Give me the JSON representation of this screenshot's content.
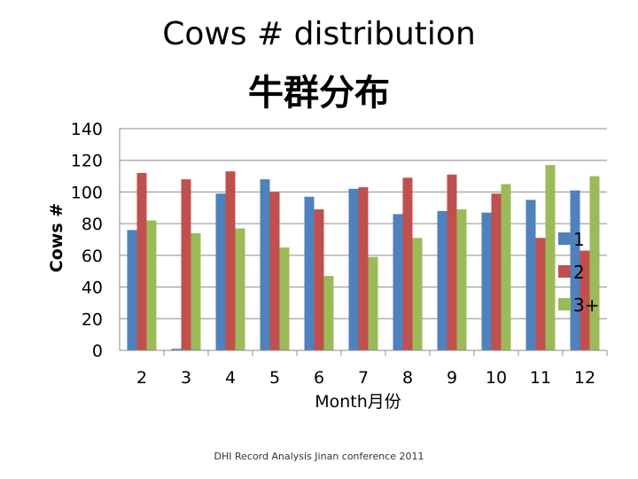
{
  "chart_data": {
    "type": "bar",
    "title": "Cows # distribution",
    "subtitle": "牛群分布",
    "xlabel": "Month月份",
    "ylabel": "Cows #",
    "categories": [
      "2",
      "3",
      "4",
      "5",
      "6",
      "7",
      "8",
      "9",
      "10",
      "11",
      "12"
    ],
    "ylim": [
      0,
      140
    ],
    "yticks": [
      0,
      20,
      40,
      60,
      80,
      100,
      120,
      140
    ],
    "grid": true,
    "legend_position": "right",
    "series": [
      {
        "name": "1",
        "color": "#4F81BD",
        "values": [
          76,
          1,
          99,
          108,
          97,
          102,
          86,
          88,
          87,
          95,
          101
        ]
      },
      {
        "name": "2",
        "color": "#C0504D",
        "values": [
          112,
          108,
          113,
          100,
          89,
          103,
          109,
          111,
          99,
          71,
          63
        ]
      },
      {
        "name": "3+",
        "color": "#9BBB59",
        "values": [
          82,
          74,
          77,
          65,
          47,
          59,
          71,
          89,
          105,
          117,
          110
        ]
      }
    ]
  },
  "footer": "DHI Record Analysis Jinan conference 2011"
}
